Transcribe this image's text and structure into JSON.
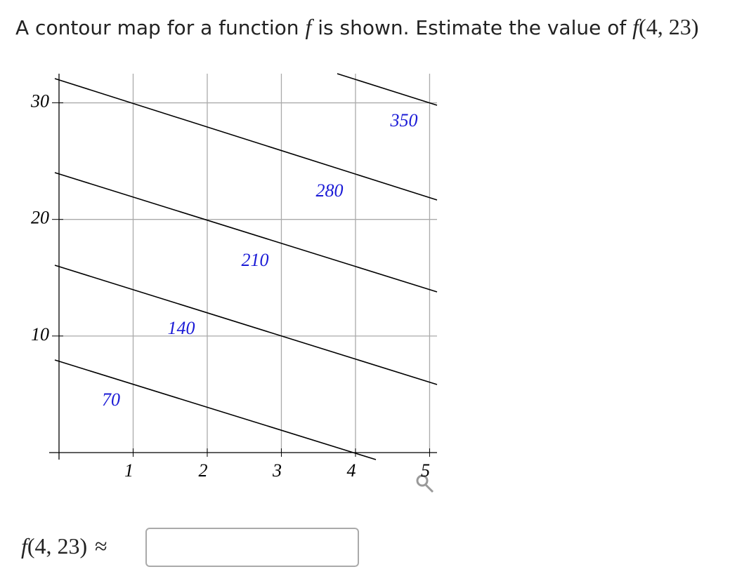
{
  "question": {
    "text": "A contour map for a function",
    "var": "f",
    "text2": "is shown. Estimate the value of",
    "expr_fn": "f",
    "expr_args": "(4, 23)"
  },
  "chart_data": {
    "type": "contour",
    "levels": [
      70,
      140,
      210,
      280,
      350
    ],
    "xlim": [
      0,
      5.1
    ],
    "ylim": [
      0,
      32.5
    ],
    "xticks": [
      1,
      2,
      3,
      4,
      5
    ],
    "yticks": [
      10,
      20,
      30
    ],
    "grid": true,
    "line_color": "#000000",
    "label_color": "#1a1ad6"
  },
  "answer": {
    "fn": "f",
    "args": "(4, 23)",
    "symbol": "≈"
  }
}
